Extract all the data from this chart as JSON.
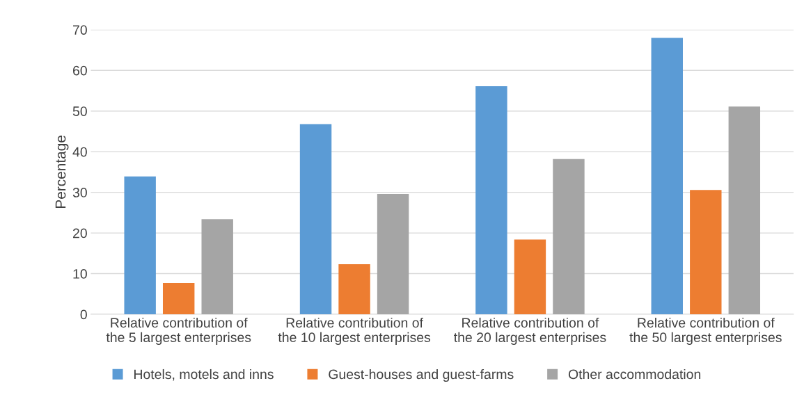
{
  "chart_data": {
    "type": "bar",
    "ylabel": "Percentage",
    "categories": [
      "Relative contribution of\nthe 5 largest enterprises",
      "Relative contribution of\nthe 10 largest enterprises",
      "Relative contribution of\nthe 20 largest enterprises",
      "Relative contribution of\nthe 50 largest enterprises"
    ],
    "series": [
      {
        "name": "Hotels, motels and inns",
        "color": "#5b9bd5",
        "values": [
          33.9,
          46.8,
          56.1,
          68.0
        ]
      },
      {
        "name": "Guest-houses and guest-farms",
        "color": "#ed7d31",
        "values": [
          7.7,
          12.3,
          18.4,
          30.6
        ]
      },
      {
        "name": "Other accommodation",
        "color": "#a5a5a5",
        "values": [
          23.4,
          29.6,
          38.2,
          51.1
        ]
      }
    ],
    "ylim": [
      0,
      70
    ],
    "yticks": [
      0,
      10,
      20,
      30,
      40,
      50,
      60,
      70
    ],
    "grid": "y",
    "legend": "bottom"
  }
}
